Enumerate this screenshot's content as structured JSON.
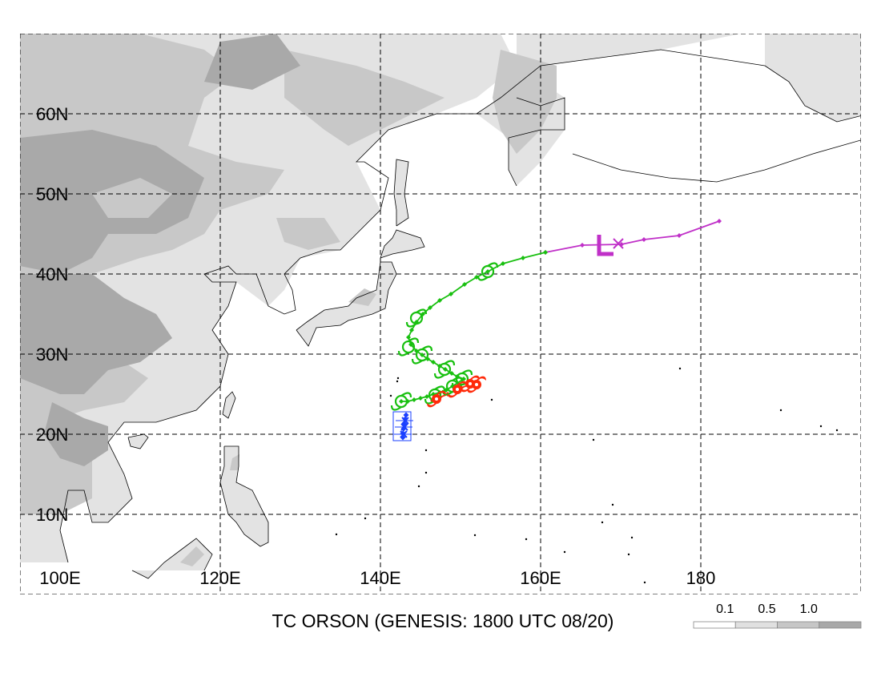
{
  "title": "TC ORSON (GENESIS: 1800 UTC 08/20)",
  "map": {
    "lon_range": [
      100,
      200
    ],
    "lat_range": [
      3,
      70
    ],
    "lon_labels": [
      {
        "lon": 100,
        "text": "100E"
      },
      {
        "lon": 120,
        "text": "120E"
      },
      {
        "lon": 140,
        "text": "140E"
      },
      {
        "lon": 160,
        "text": "160E"
      },
      {
        "lon": 180,
        "text": "180"
      }
    ],
    "lat_labels": [
      {
        "lat": 10,
        "text": "10N"
      },
      {
        "lat": 20,
        "text": "20N"
      },
      {
        "lat": 30,
        "text": "30N"
      },
      {
        "lat": 40,
        "text": "40N"
      },
      {
        "lat": 50,
        "text": "50N"
      },
      {
        "lat": 60,
        "text": "60N"
      }
    ],
    "grid_lons": [
      120,
      140,
      160,
      180
    ],
    "grid_lats": [
      10,
      20,
      30,
      40,
      50,
      60
    ]
  },
  "legend": {
    "labels": [
      "0.1",
      "0.5",
      "1.0"
    ],
    "colors": [
      "#ffffff",
      "#e0e0e0",
      "#c6c6c6",
      "#a8a8a8"
    ]
  },
  "colors": {
    "land_light": "#e3e3e3",
    "land_mid": "#c8c8c8",
    "land_dark": "#a9a9a9",
    "track_blue": "#1a3fff",
    "track_red": "#ff2a0a",
    "track_green": "#19c010",
    "track_purple": "#c030c8",
    "marker_low": "#c030c8"
  },
  "tracks": {
    "blue": [
      [
        142.8,
        19.6
      ],
      [
        142.8,
        20.1
      ],
      [
        142.9,
        20.7
      ],
      [
        143.0,
        21.3
      ],
      [
        143.1,
        21.9
      ],
      [
        143.2,
        22.4
      ]
    ],
    "red": [
      [
        146.5,
        24.2
      ],
      [
        147.4,
        24.6
      ],
      [
        148.4,
        25.0
      ],
      [
        149.3,
        25.4
      ],
      [
        150.1,
        25.8
      ],
      [
        150.9,
        26.1
      ],
      [
        151.6,
        26.3
      ]
    ],
    "green": [
      [
        142.6,
        24.1
      ],
      [
        143.4,
        24.1
      ],
      [
        144.2,
        24.3
      ],
      [
        145.0,
        24.5
      ],
      [
        145.8,
        24.7
      ],
      [
        146.6,
        25.0
      ],
      [
        147.4,
        25.2
      ],
      [
        148.2,
        25.5
      ],
      [
        149.0,
        26.0
      ],
      [
        150.4,
        26.9
      ],
      [
        149.6,
        27.2
      ],
      [
        148.9,
        27.6
      ],
      [
        148.1,
        28.1
      ],
      [
        147.4,
        28.5
      ],
      [
        146.6,
        29.0
      ],
      [
        145.9,
        29.4
      ],
      [
        145.2,
        29.9
      ],
      [
        144.5,
        30.4
      ],
      [
        143.8,
        31.2
      ],
      [
        143.5,
        32.1
      ],
      [
        143.9,
        33.0
      ],
      [
        144.5,
        34.0
      ],
      [
        145.3,
        35.0
      ],
      [
        146.2,
        35.8
      ],
      [
        147.4,
        36.7
      ],
      [
        148.8,
        37.5
      ],
      [
        150.5,
        38.7
      ],
      [
        152.0,
        39.6
      ],
      [
        153.4,
        40.3
      ],
      [
        155.3,
        41.3
      ],
      [
        157.8,
        42.0
      ],
      [
        160.6,
        42.7
      ]
    ],
    "purple": [
      [
        160.6,
        42.7
      ],
      [
        165.2,
        43.6
      ],
      [
        170.1,
        43.7
      ],
      [
        172.9,
        44.3
      ],
      [
        177.3,
        44.8
      ],
      [
        182.3,
        46.6
      ]
    ]
  },
  "symbols": {
    "blue_marks": [
      [
        142.9,
        20.0
      ],
      [
        143.0,
        20.9
      ],
      [
        143.1,
        21.7
      ]
    ],
    "red_typhoon": [
      [
        147.0,
        24.4
      ],
      [
        149.6,
        25.6
      ],
      [
        151.2,
        26.3
      ],
      [
        152.0,
        26.2
      ]
    ],
    "green_storm": [
      [
        142.6,
        24.1
      ],
      [
        146.8,
        24.9
      ],
      [
        149.0,
        26.0
      ],
      [
        148.0,
        28.1
      ],
      [
        145.2,
        29.9
      ],
      [
        143.5,
        30.9
      ],
      [
        144.5,
        34.5
      ],
      [
        153.4,
        40.3
      ],
      [
        150.2,
        26.9
      ]
    ],
    "low_marker": [
      168.3,
      43.7
    ],
    "x_marker": [
      169.7,
      43.8
    ]
  }
}
